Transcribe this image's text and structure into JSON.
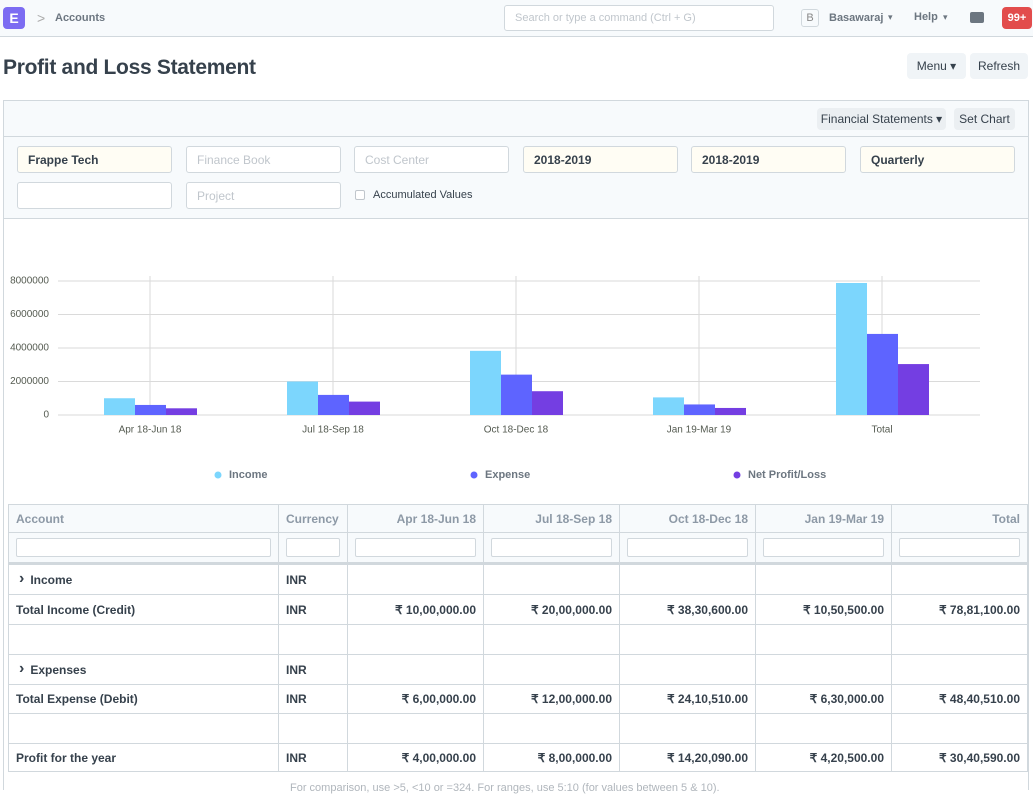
{
  "navbar": {
    "logo": "E",
    "breadcrumb": "Accounts",
    "search_placeholder": "Search or type a command (Ctrl + G)",
    "avatar": "B",
    "user": "Basawaraj",
    "help": "Help",
    "notifications": "99+"
  },
  "page": {
    "title": "Profit and Loss Statement",
    "buttons": [
      "Menu",
      "Refresh"
    ]
  },
  "toolbar": {
    "buttons": [
      "Financial Statements",
      "Set Chart"
    ]
  },
  "filters": {
    "company": "Frappe Tech",
    "finance_book": "Finance Book",
    "cost_center": "Cost Center",
    "from_year": "2018-2019",
    "to_year": "2018-2019",
    "periodicity": "Quarterly",
    "project": "Project",
    "accumulated": "Accumulated Values"
  },
  "chart_data": {
    "type": "bar",
    "categories": [
      "Apr 18-Jun 18",
      "Jul 18-Sep 18",
      "Oct 18-Dec 18",
      "Jan 19-Mar 19",
      "Total"
    ],
    "series": [
      {
        "name": "Income",
        "color": "#7cd6fd",
        "values": [
          1000000,
          2000000,
          3830600,
          1050500,
          7881100
        ]
      },
      {
        "name": "Expense",
        "color": "#5e64ff",
        "values": [
          600000,
          1200000,
          2410510,
          630000,
          4840510
        ]
      },
      {
        "name": "Net Profit/Loss",
        "color": "#743ee2",
        "values": [
          400000,
          800000,
          1420090,
          420500,
          3040590
        ]
      }
    ],
    "ylim": [
      0,
      8000000
    ],
    "yticks": [
      0,
      2000000,
      4000000,
      6000000,
      8000000
    ],
    "grid": true
  },
  "table": {
    "columns": [
      "Account",
      "Currency",
      "Apr 18-Jun 18",
      "Jul 18-Sep 18",
      "Oct 18-Dec 18",
      "Jan 19-Mar 19",
      "Total"
    ],
    "rows": [
      {
        "account": "Income",
        "currency": "INR"
      },
      {
        "account": "Total Income (Credit)",
        "currency": "INR",
        "values": [
          "₹ 10,00,000.00",
          "₹ 20,00,000.00",
          "₹ 38,30,600.00",
          "₹ 10,50,500.00",
          "₹ 78,81,100.00"
        ]
      },
      {},
      {
        "account": "Expenses",
        "currency": "INR"
      },
      {
        "account": "Total Expense (Debit)",
        "currency": "INR",
        "values": [
          "₹ 6,00,000.00",
          "₹ 12,00,000.00",
          "₹ 24,10,510.00",
          "₹ 6,30,000.00",
          "₹ 48,40,510.00"
        ]
      },
      {},
      {
        "account": "Profit for the year",
        "currency": "INR",
        "values": [
          "₹ 4,00,000.00",
          "₹ 8,00,000.00",
          "₹ 14,20,090.00",
          "₹ 4,20,500.00",
          "₹ 30,40,590.00"
        ]
      }
    ],
    "footer": "For comparison, use >5, <10 or =324. For ranges, use 5:10 (for values between 5 & 10)."
  }
}
